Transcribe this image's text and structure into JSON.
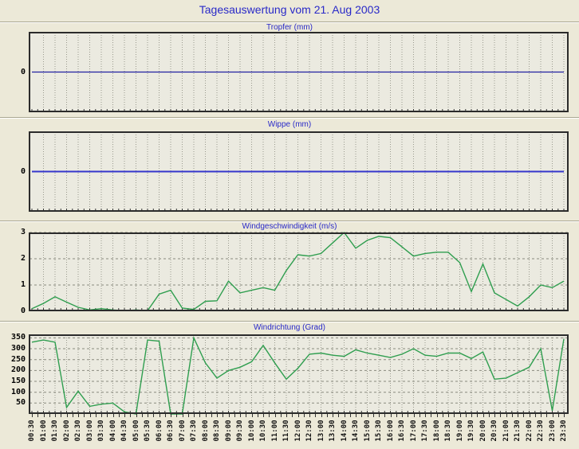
{
  "page": {
    "title": "Tagesauswertung vom 21. Aug 2003",
    "title_color": "#2929C8",
    "background": "#ECE9D8",
    "plot_background": "#EBEAE0"
  },
  "x_times": [
    "00:30",
    "01:00",
    "01:30",
    "02:00",
    "02:30",
    "03:00",
    "03:30",
    "04:00",
    "04:30",
    "05:00",
    "05:30",
    "06:00",
    "06:30",
    "07:00",
    "07:30",
    "08:00",
    "08:30",
    "09:00",
    "09:30",
    "10:00",
    "10:30",
    "11:00",
    "11:30",
    "12:00",
    "12:30",
    "13:00",
    "13:30",
    "14:00",
    "14:30",
    "15:00",
    "15:30",
    "16:00",
    "16:30",
    "17:00",
    "17:30",
    "18:00",
    "18:30",
    "19:00",
    "19:30",
    "20:00",
    "20:30",
    "21:00",
    "21:30",
    "22:00",
    "22:30",
    "23:00",
    "23:30"
  ],
  "chart_data": [
    {
      "type": "line",
      "title": "Tropfer (mm)",
      "yticks": [
        0
      ],
      "ygrid": [],
      "ylim": [
        -1.2,
        1.2
      ],
      "line_color": "#2020A0",
      "line_width": 1.2,
      "values": [
        0,
        0,
        0,
        0,
        0,
        0,
        0,
        0,
        0,
        0,
        0,
        0,
        0,
        0,
        0,
        0,
        0,
        0,
        0,
        0,
        0,
        0,
        0,
        0,
        0,
        0,
        0,
        0,
        0,
        0,
        0,
        0,
        0,
        0,
        0,
        0,
        0,
        0,
        0,
        0,
        0,
        0,
        0,
        0,
        0,
        0,
        0
      ]
    },
    {
      "type": "line",
      "title": "Wippe (mm)",
      "yticks": [
        0
      ],
      "ygrid": [],
      "ylim": [
        -1.2,
        1.2
      ],
      "line_color": "#3535CC",
      "line_width": 2,
      "values": [
        0,
        0,
        0,
        0,
        0,
        0,
        0,
        0,
        0,
        0,
        0,
        0,
        0,
        0,
        0,
        0,
        0,
        0,
        0,
        0,
        0,
        0,
        0,
        0,
        0,
        0,
        0,
        0,
        0,
        0,
        0,
        0,
        0,
        0,
        0,
        0,
        0,
        0,
        0,
        0,
        0,
        0,
        0,
        0,
        0,
        0,
        0
      ]
    },
    {
      "type": "line",
      "title": "Windgeschwindigkeit (m/s)",
      "yticks": [
        3,
        2,
        1,
        0
      ],
      "ygrid": [
        1,
        2,
        3
      ],
      "ylim": [
        0,
        3
      ],
      "line_color": "#2F9E4F",
      "line_width": 1.4,
      "values": [
        0.1,
        0.3,
        0.55,
        0.35,
        0.15,
        0.05,
        0.1,
        0.05,
        0.02,
        0.05,
        0.02,
        0.65,
        0.8,
        0.12,
        0.07,
        0.38,
        0.4,
        1.15,
        0.7,
        0.8,
        0.9,
        0.8,
        1.55,
        2.15,
        2.1,
        2.2,
        2.6,
        3.0,
        2.4,
        2.7,
        2.85,
        2.8,
        2.45,
        2.1,
        2.2,
        2.25,
        2.25,
        1.85,
        0.75,
        1.8,
        0.7,
        0.45,
        0.2,
        0.55,
        1.0,
        0.9,
        1.15
      ]
    },
    {
      "type": "line",
      "title": "Windrichtung (Grad)",
      "yticks": [
        350,
        300,
        250,
        200,
        150,
        100,
        50
      ],
      "ygrid": [
        50,
        100,
        150,
        200,
        250,
        300,
        350
      ],
      "ylim": [
        0,
        366
      ],
      "line_color": "#2F9E4F",
      "line_width": 1.4,
      "values": [
        330,
        340,
        330,
        30,
        105,
        35,
        45,
        50,
        10,
        0,
        340,
        335,
        0,
        0,
        350,
        235,
        165,
        200,
        215,
        240,
        315,
        235,
        160,
        210,
        275,
        280,
        270,
        265,
        295,
        280,
        270,
        260,
        275,
        300,
        270,
        265,
        280,
        280,
        255,
        285,
        160,
        165,
        190,
        215,
        300,
        15,
        345
      ]
    }
  ]
}
